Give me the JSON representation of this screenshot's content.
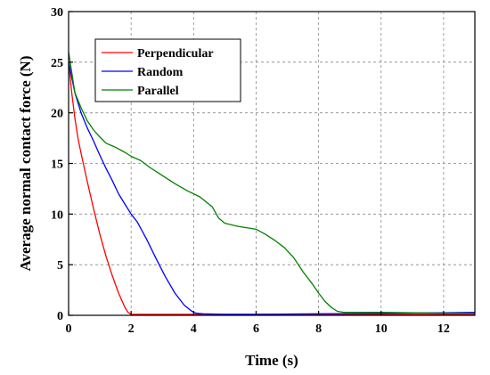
{
  "chart_data": {
    "type": "line",
    "title": "",
    "xlabel": "Time (s)",
    "ylabel": "Average normal contact force (N)",
    "xlim": [
      0,
      13
    ],
    "ylim": [
      0,
      30
    ],
    "x_ticks": [
      0,
      2,
      4,
      6,
      8,
      10,
      12
    ],
    "y_ticks": [
      0,
      5,
      10,
      15,
      20,
      25,
      30
    ],
    "grid": "dashed",
    "legend_position": "top-left",
    "series": [
      {
        "name": "Perpendicular",
        "color": "#ff0000",
        "x": [
          0,
          0.1,
          0.2,
          0.3,
          0.4,
          0.6,
          0.8,
          1.0,
          1.2,
          1.4,
          1.6,
          1.8,
          1.9,
          2.0,
          2.2,
          3,
          4,
          6,
          8,
          10,
          12,
          13
        ],
        "y": [
          25,
          22,
          19.5,
          17.5,
          16,
          13.2,
          10.5,
          8,
          5.8,
          3.9,
          2.2,
          0.8,
          0.3,
          0.1,
          0.1,
          0.1,
          0.1,
          0.1,
          0.1,
          0.1,
          0.1,
          0.1
        ]
      },
      {
        "name": "Random",
        "color": "#0000ff",
        "x": [
          0,
          0.2,
          0.4,
          0.6,
          0.8,
          1.0,
          1.2,
          1.4,
          1.6,
          1.8,
          2.0,
          2.2,
          2.5,
          2.8,
          3.1,
          3.4,
          3.7,
          3.9,
          4.0,
          4.1,
          4.3,
          5,
          6,
          8,
          10,
          12,
          13
        ],
        "y": [
          25,
          22,
          20,
          18.5,
          17.2,
          15.8,
          14.5,
          13.3,
          12,
          11,
          10,
          9.2,
          7.5,
          5.6,
          3.8,
          2.2,
          1,
          0.5,
          0.3,
          0.2,
          0.15,
          0.1,
          0.1,
          0.15,
          0.2,
          0.25,
          0.3
        ]
      },
      {
        "name": "Parallel",
        "color": "#008000",
        "x": [
          0,
          0.05,
          0.2,
          0.4,
          0.6,
          0.8,
          1.0,
          1.2,
          1.5,
          1.8,
          2.0,
          2.3,
          2.6,
          3.0,
          3.4,
          3.8,
          4.2,
          4.6,
          4.8,
          5.0,
          5.4,
          6.0,
          6.3,
          6.6,
          6.9,
          7.2,
          7.5,
          7.8,
          8.0,
          8.2,
          8.4,
          8.6,
          8.8,
          9,
          10,
          11,
          12,
          13
        ],
        "y": [
          26,
          25,
          22,
          20.5,
          19.2,
          18.3,
          17.6,
          17,
          16.6,
          16.1,
          15.7,
          15.3,
          14.6,
          13.8,
          13,
          12.3,
          11.7,
          10.7,
          9.6,
          9.1,
          8.8,
          8.5,
          8,
          7.4,
          6.7,
          5.7,
          4.3,
          3.1,
          2.2,
          1.4,
          0.8,
          0.4,
          0.3,
          0.3,
          0.3,
          0.25,
          0.2,
          0.2
        ]
      }
    ]
  }
}
